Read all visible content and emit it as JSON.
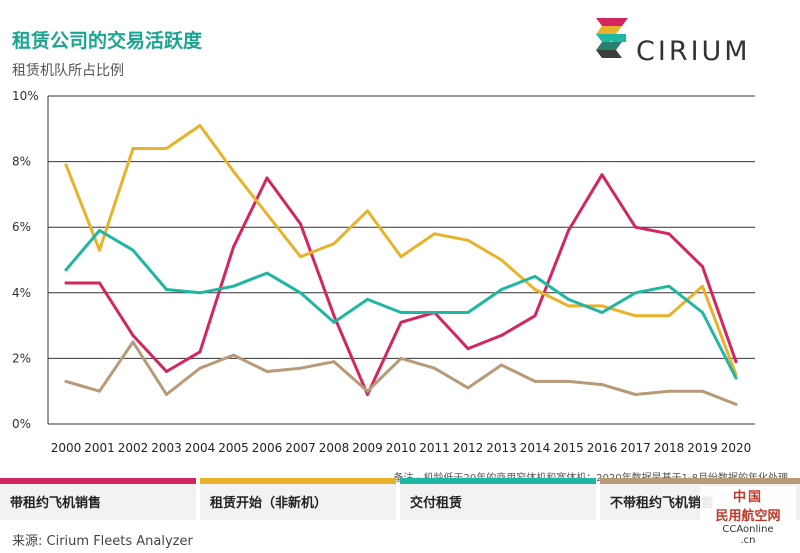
{
  "header": {
    "title": "租赁公司的交易活跃度",
    "subtitle": "租赁机队所占比例"
  },
  "logo": {
    "text": "CIRIUM"
  },
  "note": "备注 - 机龄低于20年的商用窄体机和宽体机；2020年数据是基于1-8月份数据的年化处理",
  "source": "来源:  Cirium Fleets Analyzer",
  "watermark": {
    "line1": "中国",
    "line2": "民用航空网",
    "line3": "CCAonline",
    "line4": ".cn"
  },
  "colors": {
    "magenta": "#d3265f",
    "gold": "#e9b22b",
    "teal": "#1fb7a1",
    "tan": "#b89a78",
    "grid": "#333333"
  },
  "legend": [
    {
      "label": "带租约飞机销售",
      "color": "#d3265f"
    },
    {
      "label": "租赁开始（非新机）",
      "color": "#e9b22b"
    },
    {
      "label": "交付租赁",
      "color": "#1fb7a1"
    },
    {
      "label": "不带租约飞机销售",
      "color": "#b89a78"
    }
  ],
  "chart_data": {
    "type": "line",
    "x": [
      "2000",
      "2001",
      "2002",
      "2003",
      "2004",
      "2005",
      "2006",
      "2007",
      "2008",
      "2009",
      "2010",
      "2011",
      "2012",
      "2013",
      "2014",
      "2015",
      "2016",
      "2017",
      "2018",
      "2019",
      "2020"
    ],
    "yticks": [
      "0%",
      "2%",
      "4%",
      "6%",
      "8%",
      "10%"
    ],
    "ylim": [
      0,
      10
    ],
    "grid": true,
    "series": [
      {
        "name": "带租约飞机销售",
        "color": "#d3265f",
        "values": [
          4.3,
          4.3,
          2.7,
          1.6,
          2.2,
          5.4,
          7.5,
          6.1,
          3.3,
          0.9,
          3.1,
          3.4,
          2.3,
          2.7,
          3.3,
          5.9,
          7.6,
          6.0,
          5.8,
          4.8,
          1.9
        ]
      },
      {
        "name": "租赁开始（非新机）",
        "color": "#e9b22b",
        "values": [
          7.9,
          5.3,
          8.4,
          8.4,
          9.1,
          7.7,
          6.4,
          5.1,
          5.5,
          6.5,
          5.1,
          5.8,
          5.6,
          5.0,
          4.1,
          3.6,
          3.6,
          3.3,
          3.3,
          4.2,
          1.5
        ]
      },
      {
        "name": "交付租赁",
        "color": "#1fb7a1",
        "values": [
          4.7,
          5.9,
          5.3,
          4.1,
          4.0,
          4.2,
          4.6,
          4.0,
          3.1,
          3.8,
          3.4,
          3.4,
          3.4,
          4.1,
          4.5,
          3.8,
          3.4,
          4.0,
          4.2,
          3.4,
          1.4
        ]
      },
      {
        "name": "不带租约飞机销售",
        "color": "#b89a78",
        "values": [
          1.3,
          1.0,
          2.5,
          0.9,
          1.7,
          2.1,
          1.6,
          1.7,
          1.9,
          1.0,
          2.0,
          1.7,
          1.1,
          1.8,
          1.3,
          1.3,
          1.2,
          0.9,
          1.0,
          1.0,
          0.6
        ]
      }
    ]
  }
}
